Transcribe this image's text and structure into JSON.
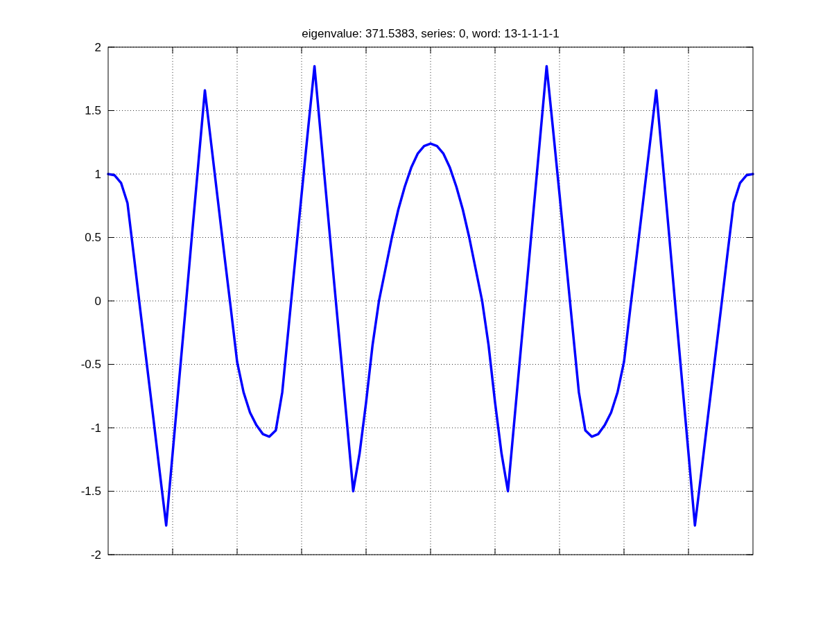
{
  "chart_data": {
    "type": "line",
    "title": "eigenvalue: 371.5383, series: 0, word: 13-1-1-1-1",
    "categories": [
      null,
      null,
      null,
      null,
      null,
      null,
      null,
      null,
      null,
      null,
      null,
      null,
      null,
      null,
      null,
      null,
      null,
      null,
      null,
      null,
      null,
      null,
      null,
      null,
      null,
      null,
      null,
      null,
      null,
      null,
      null,
      null,
      null,
      null,
      null,
      null,
      null,
      null,
      null,
      null,
      null,
      null,
      null,
      null,
      null,
      null,
      null,
      null,
      null,
      null,
      null,
      null,
      null,
      null,
      null,
      null,
      null,
      null,
      null,
      null,
      null,
      null,
      null,
      null,
      null,
      null,
      null,
      null,
      null,
      null,
      null,
      null,
      null,
      null,
      null,
      null,
      null,
      null,
      null,
      null,
      null,
      null,
      null,
      null,
      null,
      null,
      null,
      null,
      null,
      null,
      null,
      null,
      null,
      null,
      null,
      null,
      null,
      null,
      null,
      null,
      null
    ],
    "series": [
      {
        "color": "#0000ff",
        "values": [
          1.0,
          0.99,
          0.93,
          0.77,
          0.35,
          -0.08,
          -0.5,
          -0.92,
          -1.35,
          -1.77,
          -1.2,
          -0.63,
          -0.06,
          0.52,
          1.09,
          1.66,
          1.23,
          0.8,
          0.37,
          -0.05,
          -0.48,
          -0.72,
          -0.88,
          -0.98,
          -1.05,
          -1.07,
          -1.02,
          -0.72,
          -0.2,
          0.32,
          0.84,
          1.35,
          1.85,
          1.29,
          0.73,
          0.17,
          -0.38,
          -0.94,
          -1.5,
          -1.2,
          -0.8,
          -0.35,
          0.0,
          0.25,
          0.5,
          0.72,
          0.9,
          1.05,
          1.16,
          1.22,
          1.24,
          1.22,
          1.16,
          1.05,
          0.9,
          0.72,
          0.5,
          0.25,
          0.0,
          -0.35,
          -0.8,
          -1.2,
          -1.5,
          -0.94,
          -0.38,
          0.17,
          0.73,
          1.29,
          1.85,
          1.35,
          0.84,
          0.32,
          -0.2,
          -0.72,
          -1.02,
          -1.07,
          -1.05,
          -0.98,
          -0.88,
          -0.72,
          -0.48,
          -0.05,
          0.37,
          0.8,
          1.23,
          1.66,
          1.09,
          0.52,
          -0.06,
          -0.63,
          -1.2,
          -1.77,
          -1.35,
          -0.92,
          -0.5,
          -0.08,
          0.35,
          0.77,
          0.93,
          0.99,
          1.0
        ]
      }
    ],
    "ylim": [
      -2,
      2
    ],
    "yticks": [
      -2,
      -1.5,
      -1,
      -0.5,
      0,
      0.5,
      1,
      1.5,
      2
    ],
    "grid": true,
    "tick_labels": "y",
    "line_style": "solid",
    "marker": "none"
  }
}
